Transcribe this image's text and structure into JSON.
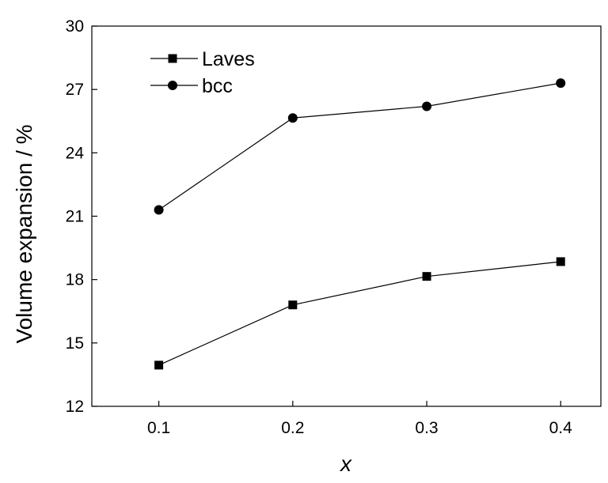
{
  "chart_data": {
    "type": "line",
    "title": "",
    "xlabel": "x",
    "ylabel": "Volume expansion / %",
    "x": [
      0.1,
      0.2,
      0.3,
      0.4
    ],
    "x_tick_labels": [
      "0.1",
      "0.2",
      "0.3",
      "0.4"
    ],
    "y_tick_values": [
      12,
      15,
      18,
      21,
      24,
      27,
      30
    ],
    "y_tick_labels": [
      "12",
      "15",
      "18",
      "21",
      "24",
      "27",
      "30"
    ],
    "xlim": [
      0.05,
      0.43
    ],
    "ylim": [
      12,
      30
    ],
    "grid": false,
    "legend_position": "top-left",
    "series": [
      {
        "name": "Laves",
        "marker": "square",
        "color": "#000000",
        "values": [
          13.95,
          16.8,
          18.15,
          18.85
        ]
      },
      {
        "name": "bcc",
        "marker": "circle",
        "color": "#000000",
        "values": [
          21.3,
          25.65,
          26.2,
          27.3
        ]
      }
    ]
  }
}
